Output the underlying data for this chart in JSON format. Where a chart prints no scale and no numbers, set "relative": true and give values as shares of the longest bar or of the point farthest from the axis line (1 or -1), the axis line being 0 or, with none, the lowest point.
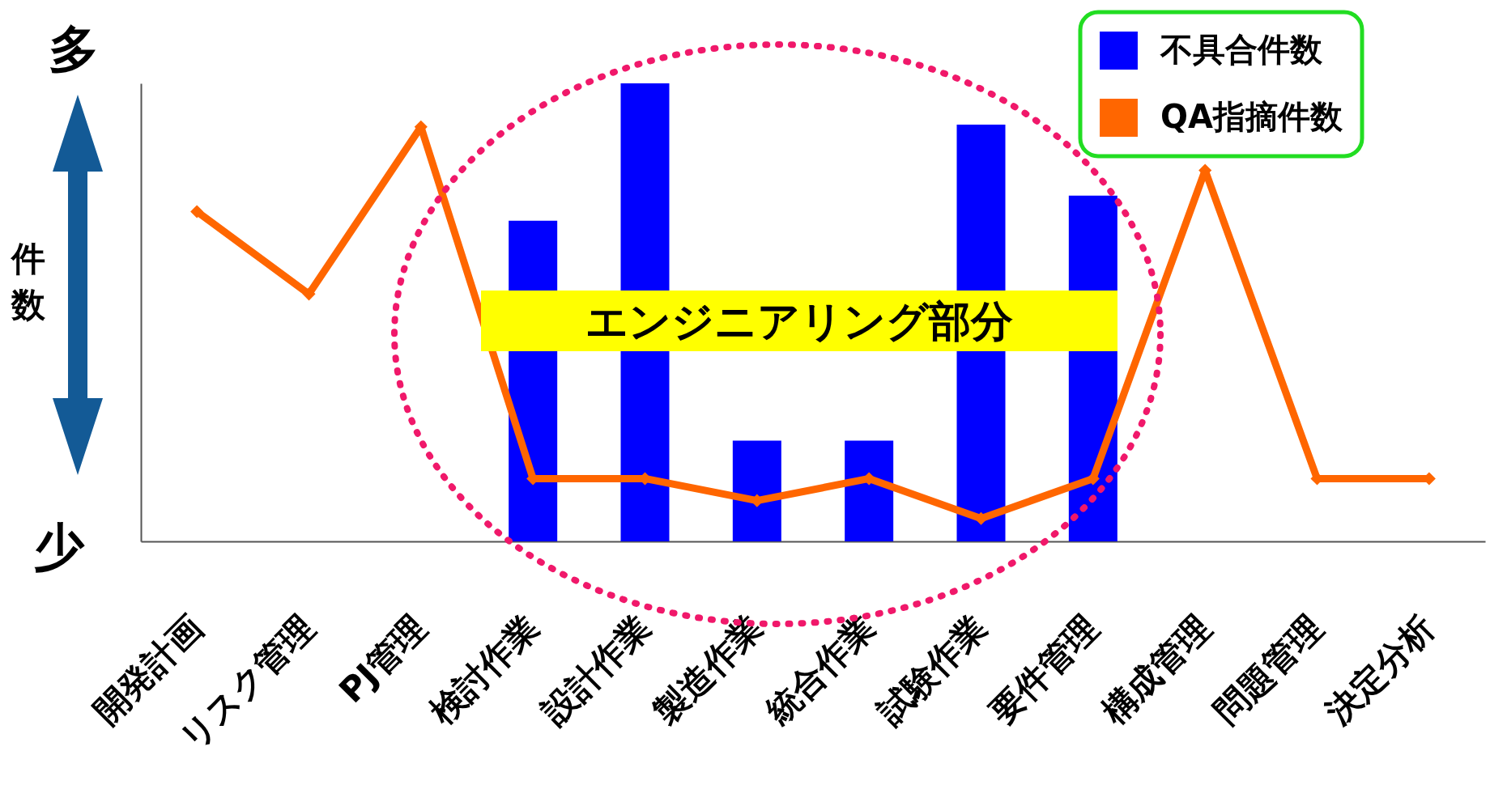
{
  "chart_data": {
    "type": "bar",
    "relative": true,
    "ylabel": "件数",
    "legend": "top right",
    "marker": "diamond",
    "line_style": "solid",
    "grid": false,
    "categories": [
      "開発計画",
      "リスク管理",
      "PJ管理",
      "検討作業",
      "設計作業",
      "製造作業",
      "統合作業",
      "試験作業",
      "要件管理",
      "構成管理",
      "問題管理",
      "決定分析"
    ],
    "series": [
      {
        "name": "不具合件数",
        "color": "#0000ff",
        "values": [
          null,
          null,
          null,
          0.7,
          1.0,
          0.22,
          0.22,
          0.91,
          0.755,
          null,
          null,
          null
        ]
      },
      {
        "name": "QA指摘件数",
        "type": "line",
        "color": "#ff6600",
        "values": [
          0.72,
          0.54,
          0.905,
          0.137,
          0.137,
          0.089,
          0.137,
          0.05,
          0.137,
          0.81,
          0.137,
          0.137
        ]
      }
    ],
    "annotations": [
      "多",
      "少",
      "エンジニアリング部分"
    ]
  }
}
